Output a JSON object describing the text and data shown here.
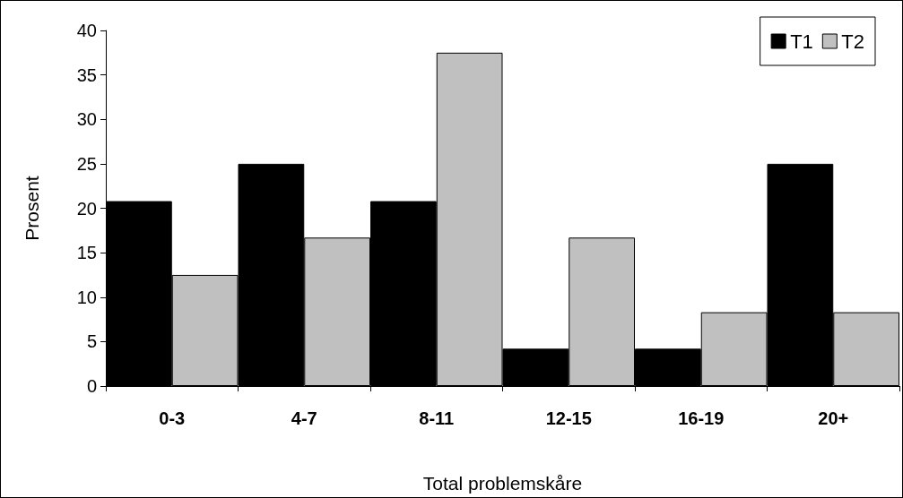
{
  "chart_data": {
    "type": "bar",
    "xlabel": "Total problemskåre",
    "ylabel": "Prosent",
    "categories": [
      "0-3",
      "4-7",
      "8-11",
      "12-15",
      "16-19",
      "20+"
    ],
    "series": [
      {
        "name": "T1",
        "color": "#000000",
        "values": [
          20.8,
          25,
          20.8,
          4.2,
          4.2,
          25
        ]
      },
      {
        "name": "T2",
        "color": "#c0c0c0",
        "values": [
          12.5,
          16.7,
          37.5,
          16.7,
          8.3,
          8.3
        ]
      }
    ],
    "ylim": [
      0,
      40
    ],
    "yticks": [
      0,
      5,
      10,
      15,
      20,
      25,
      30,
      35,
      40
    ],
    "grid": false,
    "legend": "top right"
  }
}
